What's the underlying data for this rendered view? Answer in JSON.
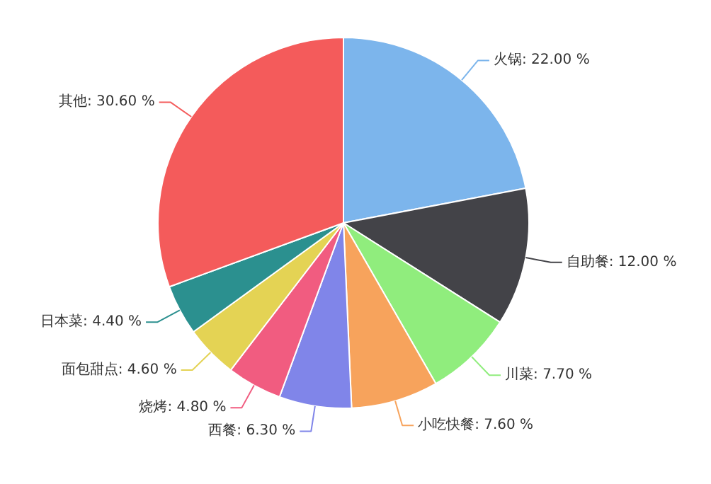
{
  "chart_data": {
    "type": "pie",
    "categories": [
      "火锅",
      "自助餐",
      "川菜",
      "小吃快餐",
      "西餐",
      "烧烤",
      "面包甜点",
      "日本菜",
      "其他"
    ],
    "values": [
      22.0,
      12.0,
      7.7,
      7.6,
      6.3,
      4.8,
      4.6,
      4.4,
      30.6
    ],
    "colors": [
      "#7cb5ec",
      "#434348",
      "#90ed7d",
      "#f7a35c",
      "#8085e9",
      "#f15c80",
      "#e4d354",
      "#2b908f",
      "#f45b5b"
    ],
    "value_labels": [
      "22.00 %",
      "12.00 %",
      "7.70 %",
      "7.60 %",
      "6.30 %",
      "4.80 %",
      "4.60 %",
      "4.40 %",
      "30.60 %"
    ]
  }
}
